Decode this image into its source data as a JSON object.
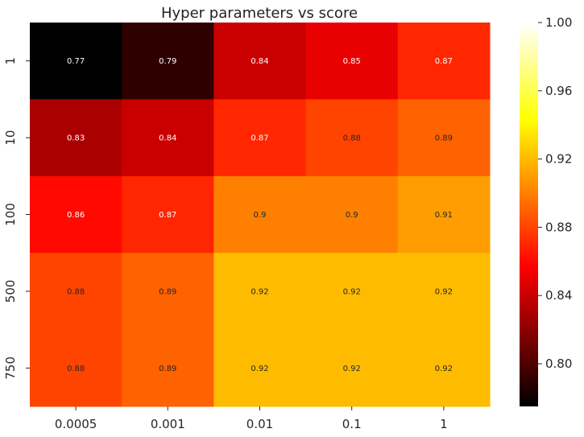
{
  "chart_data": {
    "type": "heatmap",
    "title": "Hyper parameters vs score",
    "xlabel": "",
    "ylabel": "",
    "x_categories": [
      "0.0005",
      "0.001",
      "0.01",
      "0.1",
      "1"
    ],
    "y_categories": [
      "1",
      "10",
      "100",
      "500",
      "750"
    ],
    "values": [
      [
        0.77,
        0.79,
        0.84,
        0.85,
        0.87
      ],
      [
        0.83,
        0.84,
        0.87,
        0.88,
        0.89
      ],
      [
        0.86,
        0.87,
        0.9,
        0.9,
        0.91
      ],
      [
        0.88,
        0.89,
        0.92,
        0.92,
        0.92
      ],
      [
        0.88,
        0.89,
        0.92,
        0.92,
        0.92
      ]
    ],
    "colormap": "hot",
    "colorbar": {
      "range": [
        0.775,
        1.0
      ],
      "ticks": [
        "0.80",
        "0.84",
        "0.88",
        "0.92",
        "0.96",
        "1.00"
      ]
    },
    "grid": false
  }
}
